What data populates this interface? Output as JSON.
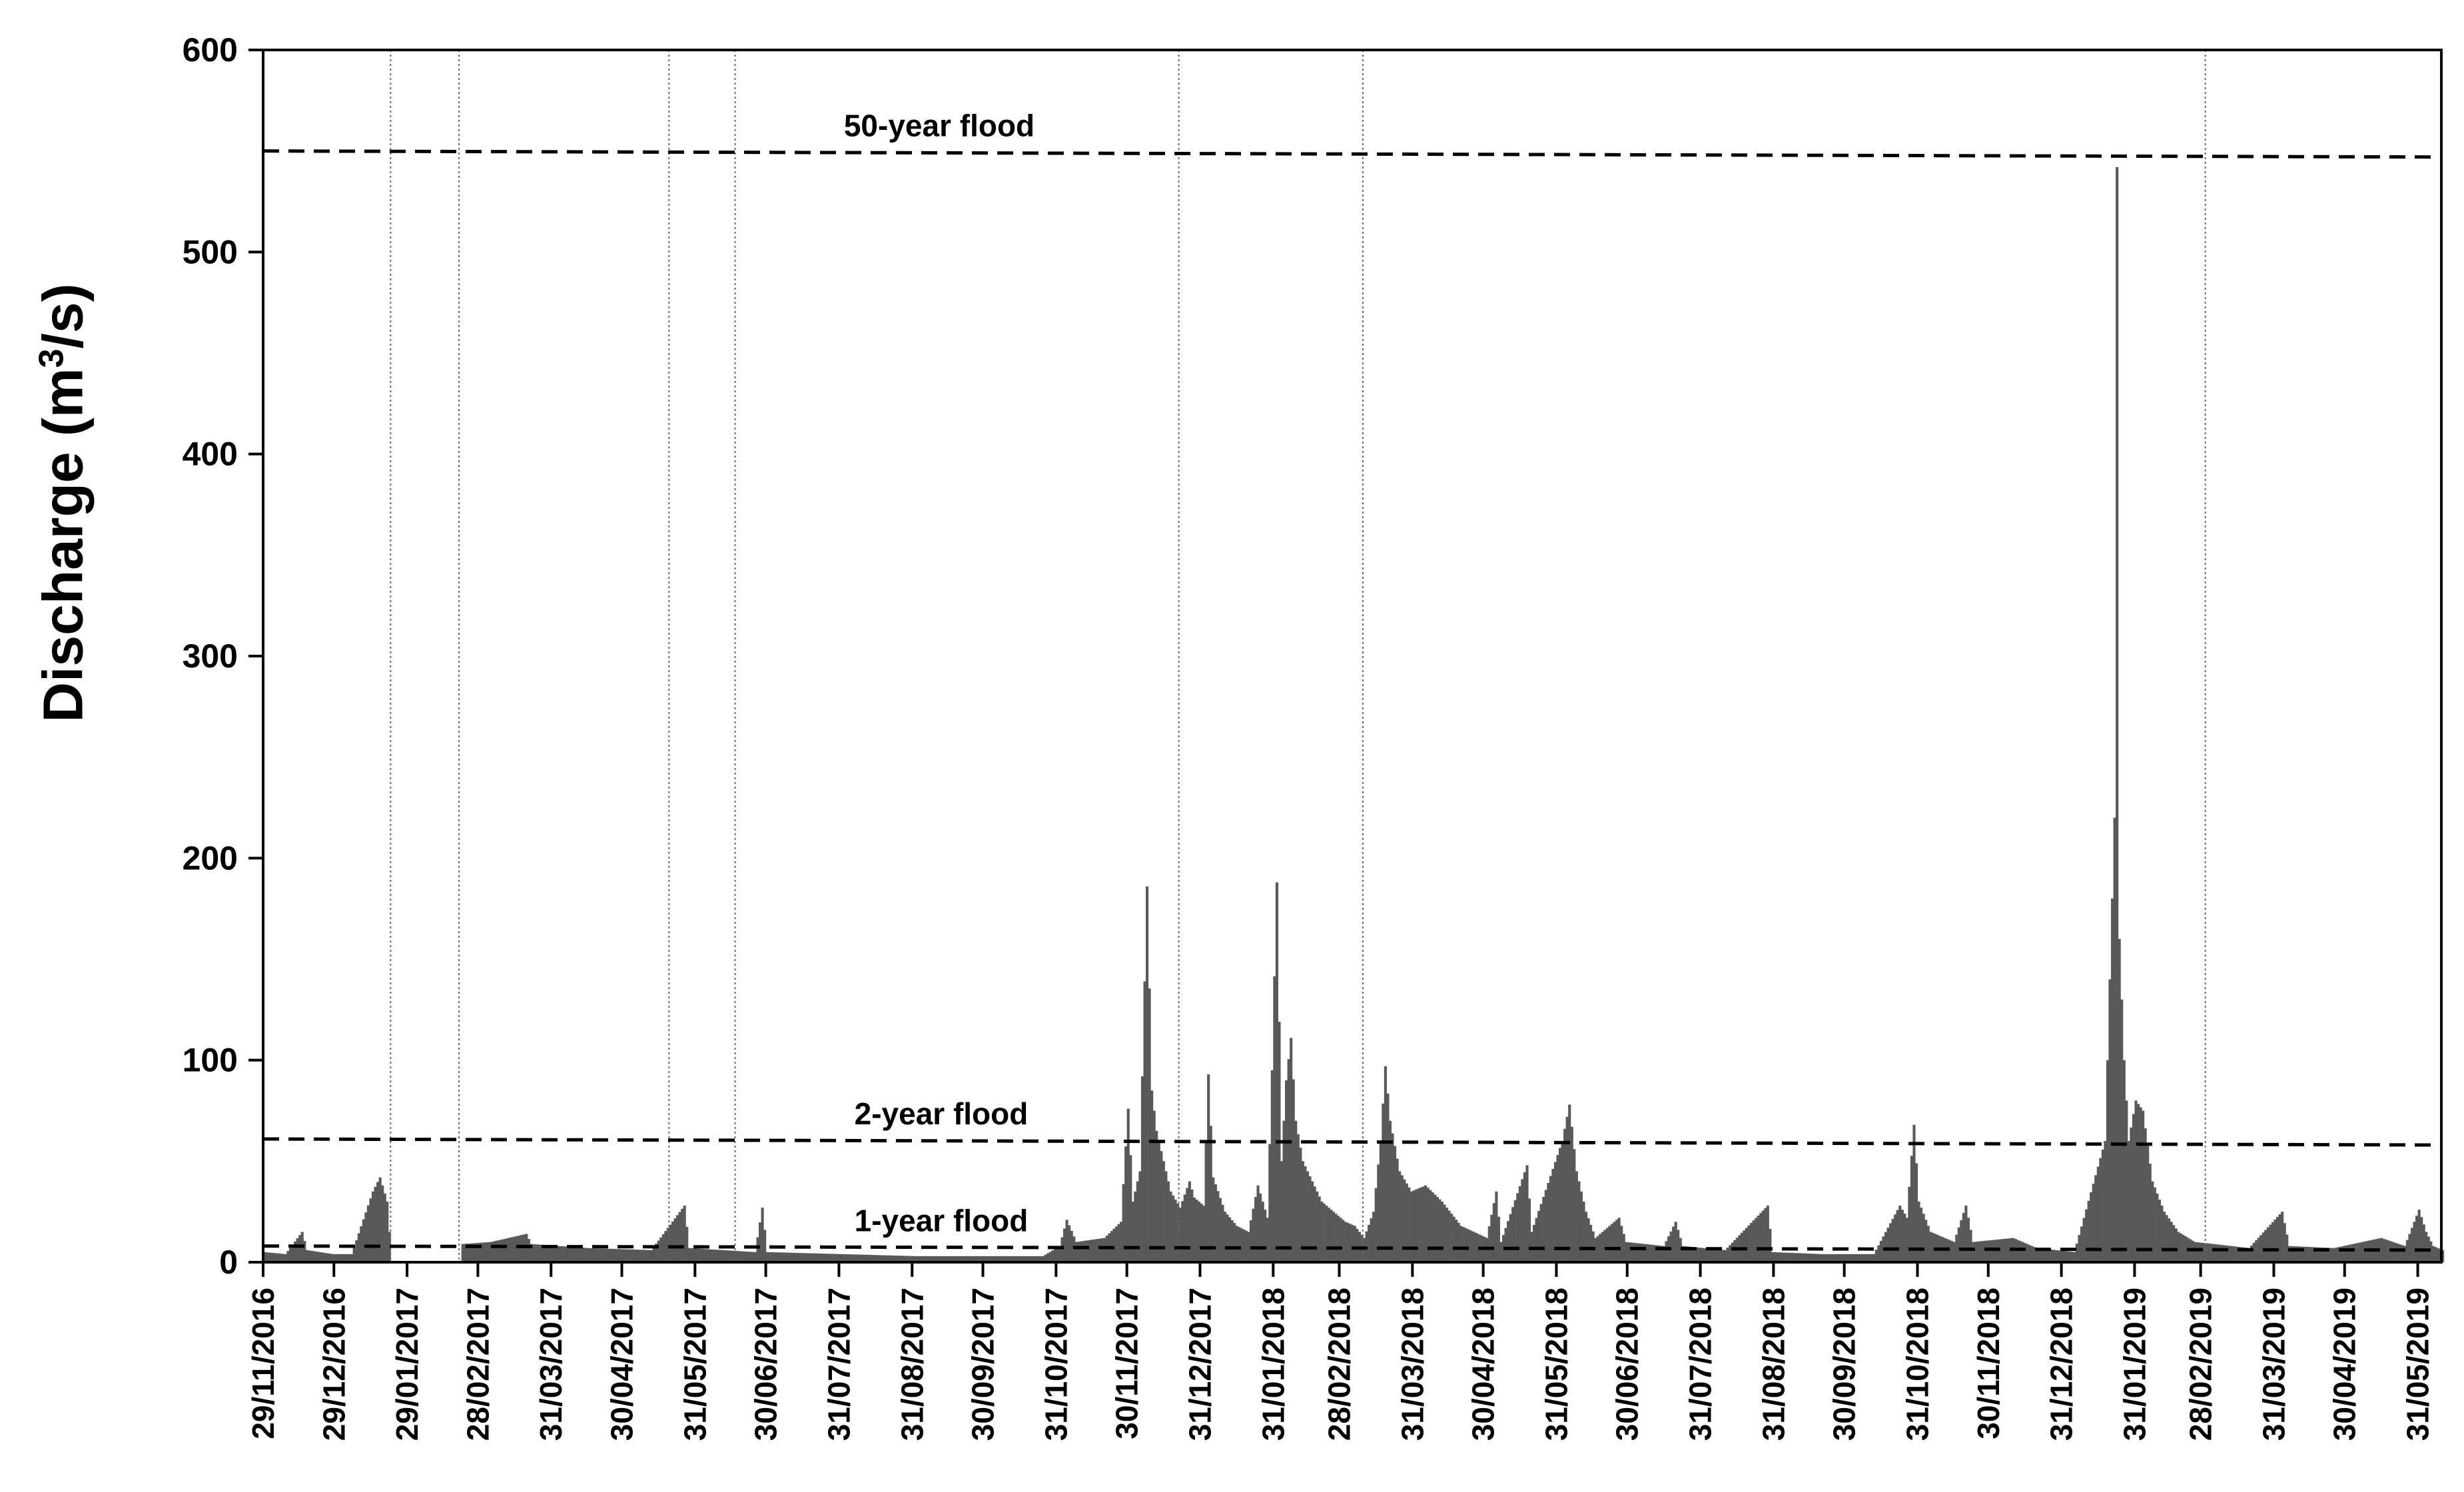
{
  "chart_data": {
    "type": "bar",
    "ylabel_main": "Discharge (m",
    "ylabel_sup": "3",
    "ylabel_end": "/s)",
    "ylim": [
      0,
      600
    ],
    "yticks": [
      0,
      100,
      200,
      300,
      400,
      500,
      600
    ],
    "xlim": [
      "2016-11-29",
      "2019-06-10"
    ],
    "xtick_labels": [
      "29/11/2016",
      "29/12/2016",
      "29/01/2017",
      "28/02/2017",
      "31/03/2017",
      "30/04/2017",
      "31/05/2017",
      "30/06/2017",
      "31/07/2017",
      "31/08/2017",
      "30/09/2017",
      "31/10/2017",
      "30/11/2017",
      "31/12/2017",
      "31/01/2018",
      "28/02/2018",
      "31/03/2018",
      "30/04/2018",
      "31/05/2018",
      "30/06/2018",
      "31/07/2018",
      "31/08/2018",
      "30/09/2018",
      "31/10/2018",
      "30/11/2018",
      "31/12/2018",
      "31/01/2019",
      "28/02/2019",
      "31/03/2019",
      "30/04/2019",
      "31/05/2019"
    ],
    "bar_color": "#595959",
    "thresholds": [
      {
        "label": "50-year flood",
        "y_start": 550,
        "y_end": 547
      },
      {
        "label": "2-year flood",
        "y_start": 61,
        "y_end": 58
      },
      {
        "label": "1-year flood",
        "y_start": 8,
        "y_end": 6
      }
    ],
    "event_lines": [
      "2017-01-22",
      "2017-02-20",
      "2017-05-20",
      "2017-06-17",
      "2017-12-22",
      "2018-03-10",
      "2019-03-02"
    ],
    "series": [
      {
        "points": [
          [
            "2016-11-29",
            5
          ],
          [
            "2016-12-08",
            4
          ],
          [
            "2016-12-15",
            15
          ],
          [
            "2016-12-17",
            6
          ],
          [
            "2016-12-28",
            4
          ],
          [
            "2017-01-05",
            4
          ],
          [
            "2017-01-14",
            35
          ],
          [
            "2017-01-17",
            42
          ],
          [
            "2017-01-20",
            30
          ],
          [
            "2017-01-22",
            0
          ],
          [
            "2017-02-20",
            0
          ],
          [
            "2017-02-21",
            9
          ],
          [
            "2017-03-05",
            10
          ],
          [
            "2017-03-20",
            14
          ],
          [
            "2017-03-22",
            9
          ],
          [
            "2017-04-15",
            7
          ],
          [
            "2017-05-12",
            6
          ],
          [
            "2017-05-26",
            28
          ],
          [
            "2017-05-28",
            7
          ],
          [
            "2017-06-25",
            5
          ],
          [
            "2017-06-28",
            27
          ],
          [
            "2017-06-30",
            5
          ],
          [
            "2017-08-01",
            4
          ],
          [
            "2017-09-01",
            3
          ],
          [
            "2017-10-01",
            3
          ],
          [
            "2017-10-25",
            3
          ],
          [
            "2017-11-01",
            8
          ],
          [
            "2017-11-04",
            21
          ],
          [
            "2017-11-08",
            10
          ],
          [
            "2017-11-20",
            12
          ],
          [
            "2017-11-27",
            20
          ],
          [
            "2017-11-30",
            76
          ],
          [
            "2017-12-02",
            30
          ],
          [
            "2017-12-05",
            45
          ],
          [
            "2017-12-08",
            186
          ],
          [
            "2017-12-10",
            85
          ],
          [
            "2017-12-12",
            65
          ],
          [
            "2017-12-15",
            50
          ],
          [
            "2017-12-18",
            35
          ],
          [
            "2017-12-22",
            27
          ],
          [
            "2017-12-26",
            40
          ],
          [
            "2017-12-28",
            32
          ],
          [
            "2018-01-01",
            28
          ],
          [
            "2018-01-03",
            93
          ],
          [
            "2018-01-05",
            42
          ],
          [
            "2018-01-10",
            25
          ],
          [
            "2018-01-15",
            18
          ],
          [
            "2018-01-20",
            15
          ],
          [
            "2018-01-24",
            38
          ],
          [
            "2018-01-28",
            22
          ],
          [
            "2018-01-30",
            95
          ],
          [
            "2018-02-01",
            188
          ],
          [
            "2018-02-03",
            50
          ],
          [
            "2018-02-05",
            90
          ],
          [
            "2018-02-07",
            111
          ],
          [
            "2018-02-09",
            70
          ],
          [
            "2018-02-12",
            50
          ],
          [
            "2018-02-16",
            40
          ],
          [
            "2018-02-20",
            30
          ],
          [
            "2018-02-25",
            25
          ],
          [
            "2018-03-02",
            20
          ],
          [
            "2018-03-06",
            18
          ],
          [
            "2018-03-10",
            12
          ],
          [
            "2018-03-14",
            25
          ],
          [
            "2018-03-17",
            60
          ],
          [
            "2018-03-19",
            97
          ],
          [
            "2018-03-21",
            70
          ],
          [
            "2018-03-25",
            45
          ],
          [
            "2018-03-30",
            35
          ],
          [
            "2018-04-05",
            38
          ],
          [
            "2018-04-12",
            30
          ],
          [
            "2018-04-20",
            18
          ],
          [
            "2018-05-01",
            12
          ],
          [
            "2018-05-05",
            35
          ],
          [
            "2018-05-07",
            10
          ],
          [
            "2018-05-18",
            48
          ],
          [
            "2018-05-20",
            15
          ],
          [
            "2018-06-02",
            60
          ],
          [
            "2018-06-05",
            78
          ],
          [
            "2018-06-08",
            45
          ],
          [
            "2018-06-12",
            25
          ],
          [
            "2018-06-16",
            12
          ],
          [
            "2018-06-26",
            22
          ],
          [
            "2018-06-29",
            10
          ],
          [
            "2018-07-15",
            8
          ],
          [
            "2018-07-20",
            20
          ],
          [
            "2018-07-23",
            8
          ],
          [
            "2018-08-10",
            6
          ],
          [
            "2018-08-28",
            28
          ],
          [
            "2018-08-30",
            5
          ],
          [
            "2018-09-20",
            4
          ],
          [
            "2018-10-12",
            4
          ],
          [
            "2018-10-23",
            28
          ],
          [
            "2018-10-26",
            22
          ],
          [
            "2018-10-29",
            68
          ],
          [
            "2018-10-31",
            30
          ],
          [
            "2018-11-05",
            15
          ],
          [
            "2018-11-15",
            10
          ],
          [
            "2018-11-20",
            28
          ],
          [
            "2018-11-23",
            10
          ],
          [
            "2018-12-10",
            12
          ],
          [
            "2018-12-20",
            7
          ],
          [
            "2019-01-05",
            5
          ],
          [
            "2019-01-18",
            60
          ],
          [
            "2019-01-22",
            220
          ],
          [
            "2019-01-23",
            542
          ],
          [
            "2019-01-24",
            160
          ],
          [
            "2019-01-26",
            100
          ],
          [
            "2019-01-28",
            60
          ],
          [
            "2019-01-31",
            80
          ],
          [
            "2019-02-03",
            75
          ],
          [
            "2019-02-07",
            40
          ],
          [
            "2019-02-12",
            25
          ],
          [
            "2019-02-18",
            15
          ],
          [
            "2019-02-25",
            10
          ],
          [
            "2019-03-05",
            9
          ],
          [
            "2019-03-20",
            7
          ],
          [
            "2019-04-03",
            25
          ],
          [
            "2019-04-06",
            8
          ],
          [
            "2019-04-25",
            7
          ],
          [
            "2019-05-15",
            12
          ],
          [
            "2019-05-25",
            8
          ],
          [
            "2019-05-31",
            26
          ],
          [
            "2019-06-03",
            15
          ],
          [
            "2019-06-06",
            8
          ],
          [
            "2019-06-10",
            6
          ]
        ]
      }
    ]
  }
}
